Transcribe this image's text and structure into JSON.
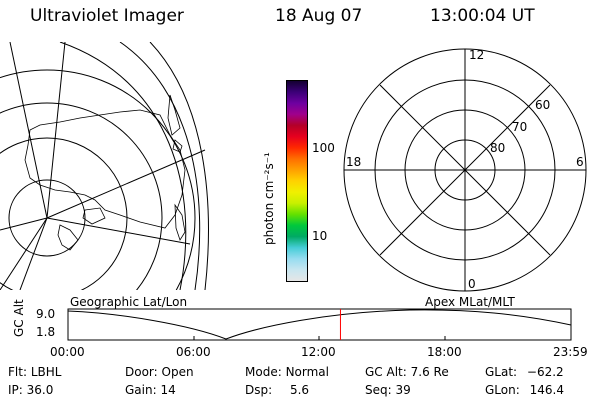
{
  "header": {
    "title": "Ultraviolet Imager",
    "date": "18 Aug 07",
    "time": "13:00:04 UT"
  },
  "geo_map": {
    "caption": "Geographic Lat/Lon"
  },
  "colorbar": {
    "unit_label": "photon cm⁻²s⁻¹",
    "ticks": [
      {
        "label": "100",
        "value": 100
      },
      {
        "label": "10",
        "value": 10
      }
    ],
    "colors": [
      "#e6e6e6",
      "#c8e6f0",
      "#96dcf0",
      "#46cdd7",
      "#00aa64",
      "#00c83c",
      "#64e100",
      "#c8f000",
      "#f0f000",
      "#ffd200",
      "#ffa000",
      "#ff6e00",
      "#ff2800",
      "#e6001e",
      "#b40028",
      "#a0008c",
      "#6e00a0",
      "#3c0078",
      "#140032"
    ]
  },
  "polar_grid": {
    "caption": "Apex MLat/MLT",
    "mlt_labels": {
      "top": "12",
      "left": "18",
      "right": "6",
      "bottom": "0"
    },
    "lat_labels": [
      "60",
      "70",
      "80"
    ]
  },
  "timeline": {
    "ylabel": "GC Alt",
    "y_ticks": [
      "9.0",
      "1.8"
    ],
    "x_ticks": [
      "00:00",
      "06:00",
      "12:00",
      "18:00",
      "23:59"
    ],
    "current_time_hours": 13.0
  },
  "status": {
    "flt_label": "Flt:",
    "flt_value": "LBHL",
    "ip_label": "IP:",
    "ip_value": "36.0",
    "door_label": "Door:",
    "door_value": "Open",
    "gain_label": "Gain:",
    "gain_value": "14",
    "mode_label": "Mode:",
    "mode_value": "Normal",
    "dsp_label": "Dsp:",
    "dsp_value": "5.6",
    "gcalt_label": "GC Alt:",
    "gcalt_value": "7.6 Re",
    "seq_label": "Seq:",
    "seq_value": "39",
    "glat_label": "GLat:",
    "glat_value": "−62.2",
    "glon_label": "GLon:",
    "glon_value": "146.4"
  }
}
